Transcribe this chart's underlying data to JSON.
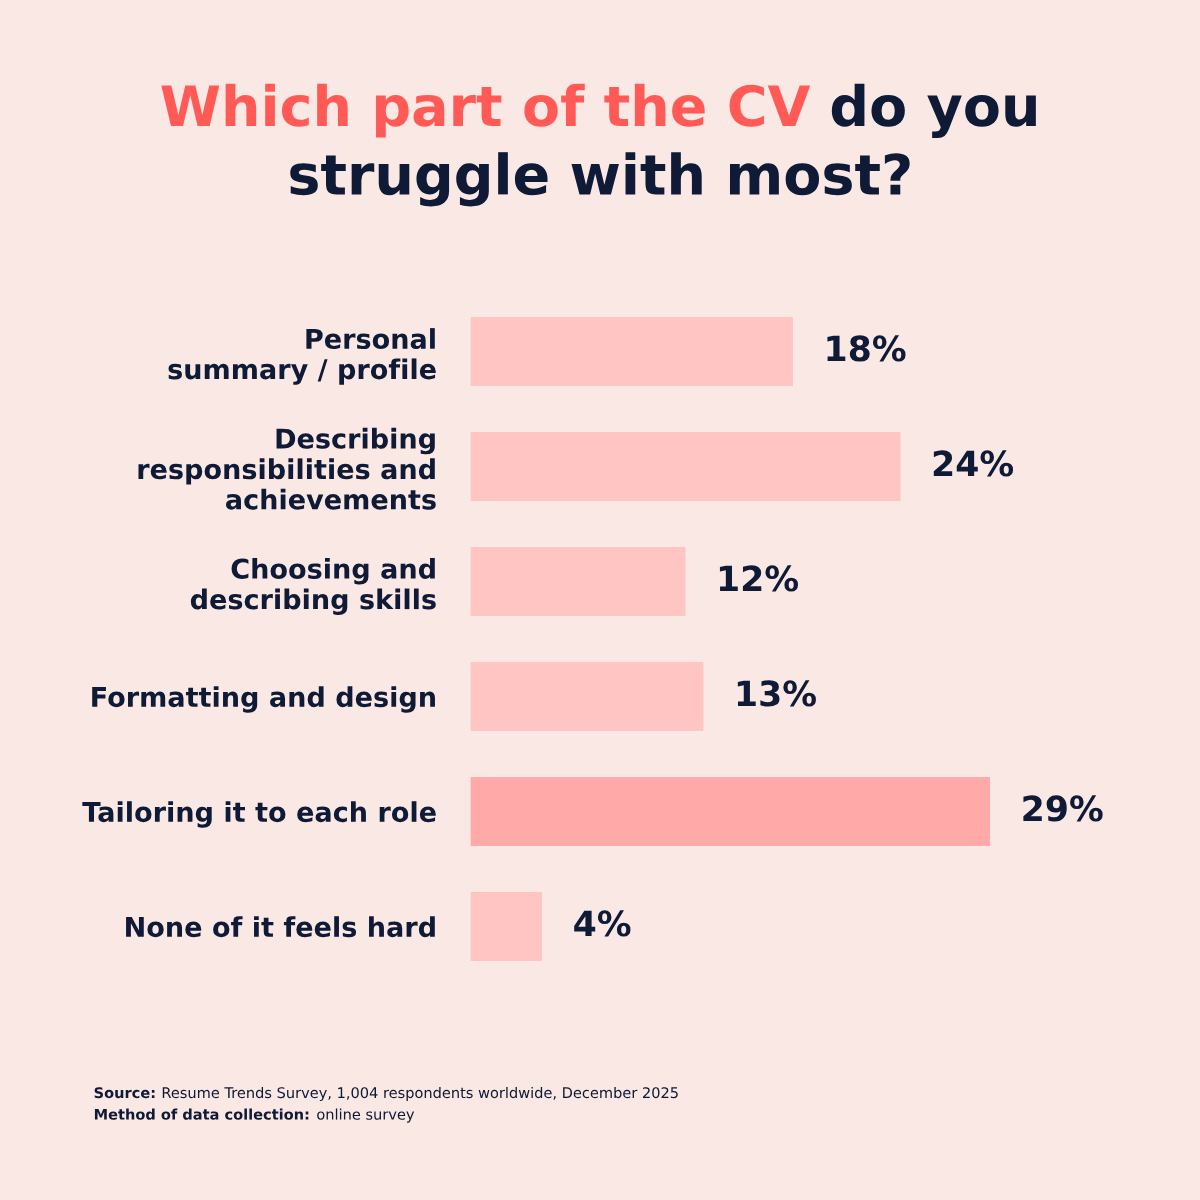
{
  "chart_data": {
    "type": "bar",
    "orientation": "horizontal",
    "title": "Which part of the CV do you struggle with most?",
    "categories": [
      "Personal\nsummary / profile",
      "Describing\nresponsibilities and\nachievements",
      "Choosing and\ndescribing skills",
      "Formatting and design",
      "Tailoring it to each role",
      "None of it feels hard"
    ],
    "values": [
      18,
      24,
      12,
      13,
      29,
      4
    ],
    "value_labels": [
      "18%",
      "24%",
      "12%",
      "13%",
      "29%",
      "4%"
    ],
    "colors": [
      "#ffc5c2",
      "#ffc5c2",
      "#ffc5c2",
      "#ffc5c2",
      "#ffaaa8",
      "#ffc5c2"
    ],
    "annotations": [
      "Source: Resume Trends Survey, 1,004 respondents worldwide, December 2025",
      "Method of data collection: online survey"
    ],
    "grid": false,
    "legend": false
  }
}
